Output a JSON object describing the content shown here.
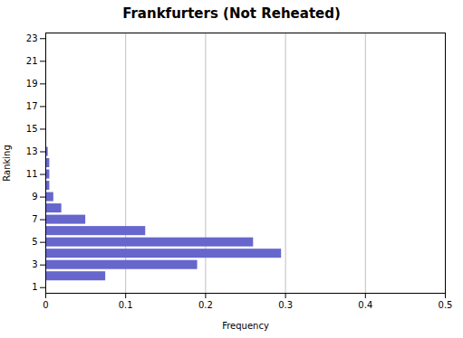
{
  "chart_data": {
    "type": "bar",
    "orientation": "horizontal",
    "title": "Frankfurters (Not Reheated)",
    "xlabel": "Frequency",
    "ylabel": "Ranking",
    "categories": [
      1,
      2,
      3,
      4,
      5,
      6,
      7,
      8,
      9,
      10,
      11,
      12,
      13,
      14,
      15,
      16,
      17,
      18,
      19,
      20,
      21,
      22,
      23
    ],
    "values": [
      0.0,
      0.075,
      0.19,
      0.295,
      0.26,
      0.125,
      0.05,
      0.02,
      0.01,
      0.005,
      0.005,
      0.005,
      0.003,
      0.0,
      0.0,
      0.0,
      0.0,
      0.0,
      0.0,
      0.0,
      0.0,
      0.0,
      0.0
    ],
    "color": "#6666cc",
    "xlim": [
      0,
      0.5
    ],
    "xticks": [
      0,
      0.1,
      0.2,
      0.3,
      0.4,
      0.5
    ],
    "ylim": [
      0.5,
      23.5
    ],
    "yticks": [
      1,
      3,
      5,
      7,
      9,
      11,
      13,
      15,
      17,
      19,
      21,
      23
    ],
    "grid": true
  }
}
